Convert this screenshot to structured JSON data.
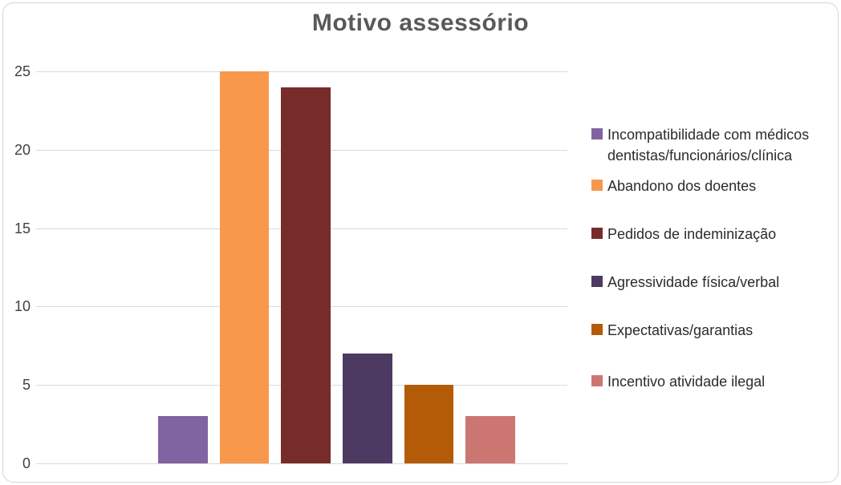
{
  "chart": {
    "title": "Motivo assessório",
    "title_color": "#595959",
    "grid_color": "#D9D9D9",
    "frame_border_color": "#D5D5D5",
    "background_color": "#FFFFFF"
  },
  "chart_data": {
    "type": "bar",
    "title": "Motivo assessório",
    "categories": [
      "Incompatibilidade com médicos dentistas/funcionários/clínica",
      "Abandono dos doentes",
      "Pedidos de indeminização",
      "Agressividade física/verbal",
      "Expectativas/garantias",
      "Incentivo atividade ilegal"
    ],
    "values": [
      3,
      25,
      24,
      7,
      5,
      3
    ],
    "colors": [
      "#8064A2",
      "#F7984C",
      "#772C2A",
      "#4C3A62",
      "#B45B08",
      "#CC7672"
    ],
    "xlabel": "",
    "ylabel": "",
    "ylim": [
      0,
      25
    ],
    "yticks": [
      0,
      5,
      10,
      15,
      20,
      25
    ],
    "grid": true,
    "legend_position": "right"
  }
}
